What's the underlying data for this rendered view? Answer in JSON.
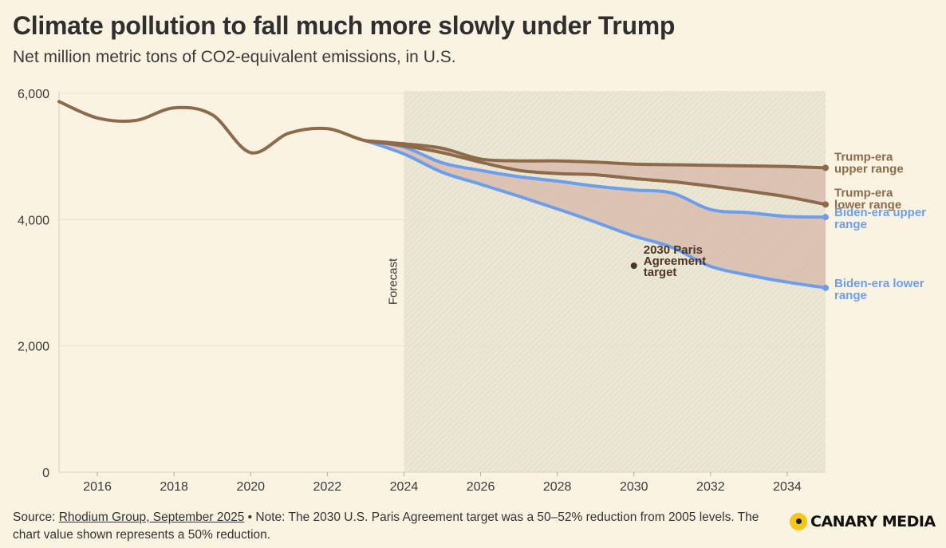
{
  "header": {
    "title": "Climate pollution to fall much more slowly under Trump",
    "subtitle": "Net million metric tons of CO2-equivalent emissions, in U.S."
  },
  "footer": {
    "source_prefix": "Source: ",
    "source_link": "Rhodium Group, September 2025",
    "note": " • Note: The 2030 U.S. Paris Agreement target was a 50–52% reduction from 2005 levels. The chart value shown represents a 50% reduction."
  },
  "logo": {
    "text": "CANARY MEDIA",
    "dot_color": "#f5c518"
  },
  "colors": {
    "trump": "#8c6a4a",
    "biden": "#6d9eeb",
    "band_fill": "#d7b7a8",
    "forecast_bg": "#e9e5d2",
    "target": "#4a3524",
    "grid": "#e6e1d2",
    "background": "#faf3e2"
  },
  "chart_data": {
    "type": "line",
    "xlim": [
      2015,
      2035
    ],
    "ylim": [
      0,
      6000
    ],
    "yticks": [
      0,
      2000,
      4000,
      6000
    ],
    "ytick_labels": [
      "0",
      "2,000",
      "4,000",
      "6,000"
    ],
    "xticks": [
      2016,
      2018,
      2020,
      2022,
      2024,
      2026,
      2028,
      2030,
      2032,
      2034
    ],
    "xtick_labels": [
      "2016",
      "2018",
      "2020",
      "2022",
      "2024",
      "2026",
      "2028",
      "2030",
      "2032",
      "2034"
    ],
    "forecast_start": 2024,
    "forecast_label": "Forecast",
    "historical": {
      "x": [
        2015,
        2016,
        2017,
        2018,
        2019,
        2020,
        2021,
        2022,
        2023,
        2024
      ],
      "y": [
        5870,
        5610,
        5570,
        5770,
        5660,
        5060,
        5370,
        5440,
        5250,
        5200
      ]
    },
    "series": [
      {
        "name": "Trump-era upper range",
        "x": [
          2023,
          2024,
          2025,
          2026,
          2027,
          2028,
          2029,
          2030,
          2031,
          2032,
          2033,
          2034,
          2035
        ],
        "y": [
          5250,
          5200,
          5130,
          4960,
          4930,
          4930,
          4910,
          4880,
          4870,
          4860,
          4850,
          4840,
          4820
        ]
      },
      {
        "name": "Trump-era lower range",
        "x": [
          2023,
          2024,
          2025,
          2026,
          2027,
          2028,
          2029,
          2030,
          2031,
          2032,
          2033,
          2034,
          2035
        ],
        "y": [
          5250,
          5170,
          5060,
          4910,
          4780,
          4730,
          4710,
          4650,
          4600,
          4530,
          4450,
          4360,
          4240
        ]
      },
      {
        "name": "Biden-era upper range",
        "x": [
          2023,
          2024,
          2025,
          2026,
          2027,
          2028,
          2029,
          2030,
          2031,
          2032,
          2033,
          2034,
          2035
        ],
        "y": [
          5250,
          5150,
          4900,
          4780,
          4680,
          4610,
          4530,
          4470,
          4420,
          4160,
          4110,
          4050,
          4040
        ]
      },
      {
        "name": "Biden-era lower range",
        "x": [
          2023,
          2024,
          2025,
          2026,
          2027,
          2028,
          2029,
          2030,
          2031,
          2032,
          2033,
          2034,
          2035
        ],
        "y": [
          5250,
          5040,
          4750,
          4560,
          4370,
          4170,
          3960,
          3740,
          3560,
          3260,
          3120,
          3010,
          2920
        ]
      }
    ],
    "target": {
      "name": "2030 Paris Agreement target",
      "x": 2030,
      "y": 3270
    },
    "grid": true,
    "legend": "direct labels at right"
  }
}
